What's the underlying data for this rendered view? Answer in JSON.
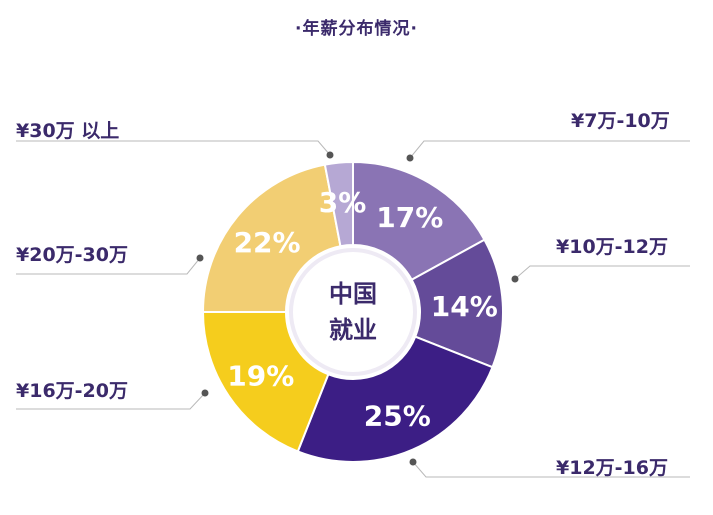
{
  "title": "·年薪分布情况·",
  "center_text": {
    "line1": "中国",
    "line2": "就业"
  },
  "chart_data": {
    "type": "pie",
    "title": "·年薪分布情况·",
    "categories": [
      "¥7万-10万",
      "¥10万-12万",
      "¥12万-16万",
      "¥16万-20万",
      "¥20万-30万",
      "¥30万 以上"
    ],
    "values": [
      17,
      14,
      25,
      19,
      22,
      3
    ],
    "value_labels": [
      "17%",
      "14%",
      "25%",
      "19%",
      "22%",
      "3%"
    ],
    "colors": [
      "#8a74b4",
      "#644b99",
      "#3c1e85",
      "#f5cd1d",
      "#f2ce73",
      "#b6a8d4"
    ],
    "donut": true,
    "legend": "callout-labels"
  }
}
